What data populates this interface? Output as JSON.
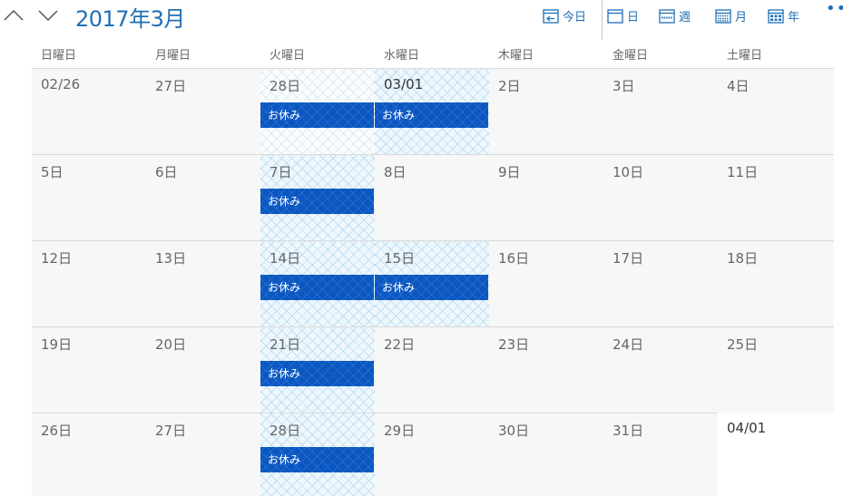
{
  "header": {
    "title": "2017年3月"
  },
  "toolbar": {
    "today": "今日",
    "day": "日",
    "week": "週",
    "month": "月",
    "year": "年",
    "more": "•••"
  },
  "weekdays": [
    "日曜日",
    "月曜日",
    "火曜日",
    "水曜日",
    "木曜日",
    "金曜日",
    "土曜日"
  ],
  "weeks": [
    {
      "days": [
        {
          "date": "02/26"
        },
        {
          "date": "27日"
        },
        {
          "date": "28日",
          "event": "お休み"
        },
        {
          "date": "03/01",
          "event": "お休み"
        },
        {
          "date": "2日"
        },
        {
          "date": "3日"
        },
        {
          "date": "4日"
        }
      ]
    },
    {
      "days": [
        {
          "date": "5日"
        },
        {
          "date": "6日"
        },
        {
          "date": "7日",
          "event": "お休み"
        },
        {
          "date": "8日"
        },
        {
          "date": "9日"
        },
        {
          "date": "10日"
        },
        {
          "date": "11日"
        }
      ]
    },
    {
      "days": [
        {
          "date": "12日"
        },
        {
          "date": "13日"
        },
        {
          "date": "14日",
          "event": "お休み"
        },
        {
          "date": "15日",
          "event": "お休み"
        },
        {
          "date": "16日"
        },
        {
          "date": "17日"
        },
        {
          "date": "18日"
        }
      ]
    },
    {
      "days": [
        {
          "date": "19日"
        },
        {
          "date": "20日"
        },
        {
          "date": "21日",
          "event": "お休み"
        },
        {
          "date": "22日"
        },
        {
          "date": "23日"
        },
        {
          "date": "24日"
        },
        {
          "date": "25日"
        }
      ]
    },
    {
      "days": [
        {
          "date": "26日"
        },
        {
          "date": "27日"
        },
        {
          "date": "28日",
          "event": "お休み"
        },
        {
          "date": "29日"
        },
        {
          "date": "30日"
        },
        {
          "date": "31日"
        },
        {
          "date": "04/01"
        }
      ]
    }
  ],
  "colors": {
    "accent": "#1e6fb5",
    "event": "#0a57c2",
    "hatch": "#eef7fc"
  }
}
